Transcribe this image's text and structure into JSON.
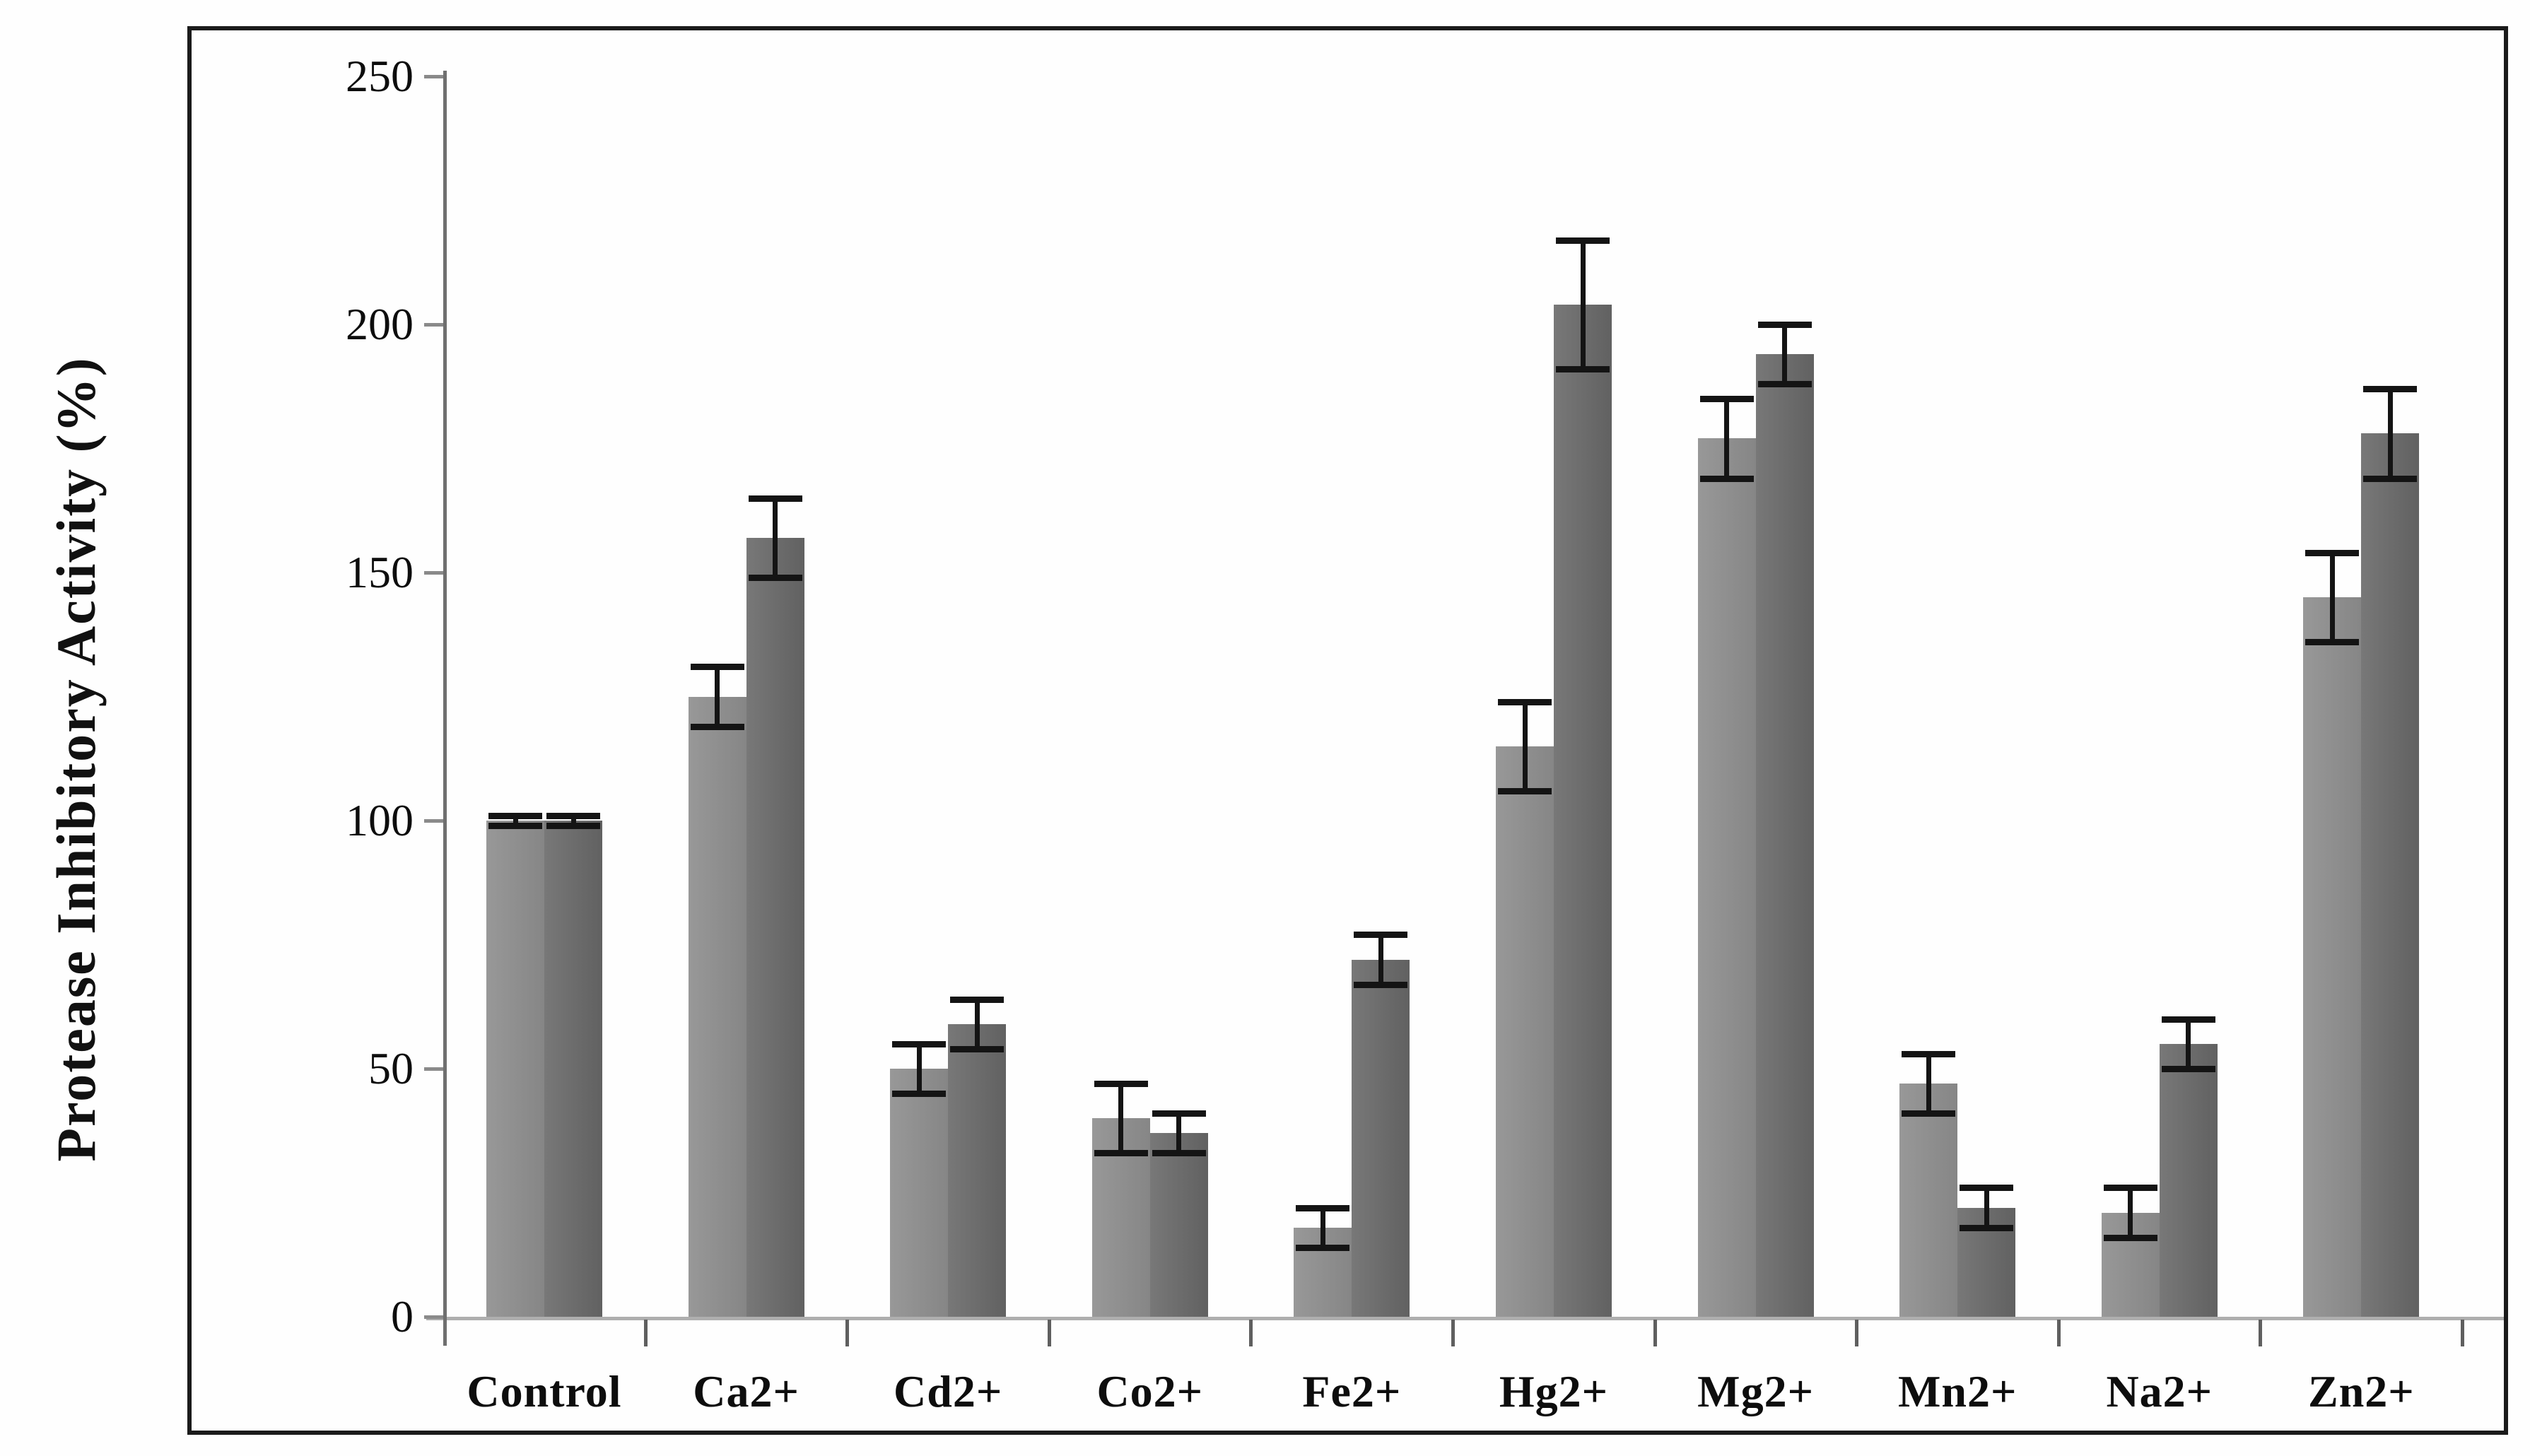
{
  "figure": {
    "background": "#fefefe",
    "border_color": "#1b1b1b"
  },
  "chart_data": {
    "type": "bar",
    "title": "",
    "xlabel": "",
    "ylabel": "Protease Inhibitory Activity (%)",
    "categories": [
      "Control",
      "Ca2+",
      "Cd2+",
      "Co2+",
      "Fe2+",
      "Hg2+",
      "Mg2+",
      "Mn2+",
      "Na2+",
      "Zn2+"
    ],
    "series": [
      {
        "name": "light-gray-bars",
        "color": "#8e8e8e",
        "values": [
          100,
          125,
          50,
          40,
          18,
          115,
          177,
          47,
          21,
          145
        ],
        "errors": [
          1,
          6,
          5,
          7,
          4,
          9,
          8,
          6,
          5,
          9
        ]
      },
      {
        "name": "dark-gray-bars",
        "color": "#6a6a6a",
        "values": [
          100,
          157,
          59,
          37,
          72,
          204,
          194,
          22,
          55,
          178
        ],
        "errors": [
          1,
          8,
          5,
          4,
          5,
          13,
          6,
          4,
          5,
          9
        ]
      }
    ],
    "error_bar_color": "#141414",
    "ylim": [
      0,
      250
    ],
    "yticks": [
      "0",
      "50",
      "100",
      "150",
      "200",
      "250"
    ],
    "grid": false,
    "legend": "none"
  }
}
